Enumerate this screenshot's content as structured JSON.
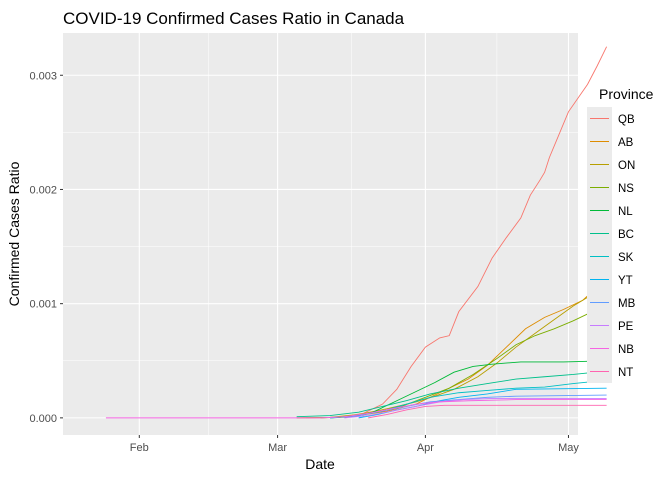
{
  "chart_data": {
    "type": "line",
    "title": "COVID-19 Confirmed Cases Ratio in Canada",
    "xlabel": "Date",
    "ylabel": "Confirmed Cases Ratio",
    "x_type": "date",
    "xlim": [
      "2020-01-16",
      "2020-05-03"
    ],
    "ylim": [
      -0.00015,
      0.00337
    ],
    "x_ticks": [
      {
        "date": "2020-02-01",
        "label": "Feb"
      },
      {
        "date": "2020-03-01",
        "label": "Mar"
      },
      {
        "date": "2020-04-01",
        "label": "Apr"
      },
      {
        "date": "2020-05-01",
        "label": "May"
      }
    ],
    "y_ticks": [
      {
        "value": 0,
        "label": "0.000"
      },
      {
        "value": 0.001,
        "label": "0.001"
      },
      {
        "value": 0.002,
        "label": "0.002"
      },
      {
        "value": 0.003,
        "label": "0.003"
      }
    ],
    "grid": true,
    "background": "#ebebeb",
    "legend": {
      "title": "Province",
      "position": "right"
    },
    "series": [
      {
        "name": "QB",
        "color": "#F8766D",
        "points": [
          [
            "2020-03-07",
            0
          ],
          [
            "2020-03-14",
            5e-06
          ],
          [
            "2020-03-19",
            4e-05
          ],
          [
            "2020-03-23",
            0.00012
          ],
          [
            "2020-03-26",
            0.00025
          ],
          [
            "2020-03-29",
            0.00045
          ],
          [
            "2020-04-01",
            0.00062
          ],
          [
            "2020-04-04",
            0.0007
          ],
          [
            "2020-04-06",
            0.00072
          ],
          [
            "2020-04-08",
            0.00093
          ],
          [
            "2020-04-12",
            0.00115
          ],
          [
            "2020-04-15",
            0.0014
          ],
          [
            "2020-04-18",
            0.00158
          ],
          [
            "2020-04-21",
            0.00175
          ],
          [
            "2020-04-23",
            0.00195
          ],
          [
            "2020-04-25",
            0.00208
          ],
          [
            "2020-04-26",
            0.00215
          ],
          [
            "2020-04-27",
            0.00228
          ],
          [
            "2020-04-29",
            0.00248
          ],
          [
            "2020-05-01",
            0.00268
          ],
          [
            "2020-05-05",
            0.00292
          ],
          [
            "2020-05-07",
            0.00308
          ],
          [
            "2020-05-09",
            0.00325
          ]
        ]
      },
      {
        "name": "AB",
        "color": "#DE8C00",
        "points": [
          [
            "2020-03-05",
            0
          ],
          [
            "2020-03-12",
            3e-06
          ],
          [
            "2020-03-18",
            2e-05
          ],
          [
            "2020-03-24",
            6e-05
          ],
          [
            "2020-03-30",
            0.00012
          ],
          [
            "2020-04-04",
            0.00022
          ],
          [
            "2020-04-10",
            0.00034
          ],
          [
            "2020-04-14",
            0.00046
          ],
          [
            "2020-04-18",
            0.00062
          ],
          [
            "2020-04-22",
            0.00078
          ],
          [
            "2020-04-26",
            0.00088
          ],
          [
            "2020-04-30",
            0.00095
          ],
          [
            "2020-05-04",
            0.00103
          ],
          [
            "2020-05-09",
            0.00122
          ]
        ]
      },
      {
        "name": "ON",
        "color": "#B79F00",
        "points": [
          [
            "2020-03-05",
            0
          ],
          [
            "2020-03-12",
            5e-06
          ],
          [
            "2020-03-18",
            3e-05
          ],
          [
            "2020-03-24",
            8e-05
          ],
          [
            "2020-03-30",
            0.00014
          ],
          [
            "2020-04-03",
            0.00019
          ],
          [
            "2020-04-07",
            0.00025
          ],
          [
            "2020-04-12",
            0.00036
          ],
          [
            "2020-04-16",
            0.00048
          ],
          [
            "2020-04-20",
            0.00062
          ],
          [
            "2020-04-24",
            0.00074
          ],
          [
            "2020-04-28",
            0.00086
          ],
          [
            "2020-05-02",
            0.00098
          ],
          [
            "2020-05-06",
            0.00108
          ],
          [
            "2020-05-09",
            0.0012
          ]
        ]
      },
      {
        "name": "NS",
        "color": "#7CAE00",
        "points": [
          [
            "2020-03-10",
            0
          ],
          [
            "2020-03-16",
            1e-05
          ],
          [
            "2020-03-22",
            5e-05
          ],
          [
            "2020-03-27",
            0.0001
          ],
          [
            "2020-04-01",
            0.00018
          ],
          [
            "2020-04-06",
            0.00026
          ],
          [
            "2020-04-11",
            0.00038
          ],
          [
            "2020-04-16",
            0.00052
          ],
          [
            "2020-04-20",
            0.00064
          ],
          [
            "2020-04-24",
            0.00072
          ],
          [
            "2020-04-28",
            0.00078
          ],
          [
            "2020-05-02",
            0.00085
          ],
          [
            "2020-05-06",
            0.00093
          ],
          [
            "2020-05-09",
            0.00097
          ]
        ]
      },
      {
        "name": "NL",
        "color": "#00BA38",
        "points": [
          [
            "2020-03-12",
            0
          ],
          [
            "2020-03-17",
            1e-05
          ],
          [
            "2020-03-21",
            5e-05
          ],
          [
            "2020-03-26",
            0.00015
          ],
          [
            "2020-03-30",
            0.00023
          ],
          [
            "2020-04-03",
            0.00031
          ],
          [
            "2020-04-07",
            0.0004
          ],
          [
            "2020-04-11",
            0.00045
          ],
          [
            "2020-04-15",
            0.00047
          ],
          [
            "2020-04-21",
            0.00049
          ],
          [
            "2020-04-30",
            0.00049
          ],
          [
            "2020-05-09",
            0.0005
          ]
        ]
      },
      {
        "name": "BC",
        "color": "#00C08B",
        "points": [
          [
            "2020-03-05",
            1e-05
          ],
          [
            "2020-03-12",
            2e-05
          ],
          [
            "2020-03-18",
            5e-05
          ],
          [
            "2020-03-23",
            0.0001
          ],
          [
            "2020-03-28",
            0.00015
          ],
          [
            "2020-04-02",
            0.00021
          ],
          [
            "2020-04-08",
            0.00026
          ],
          [
            "2020-04-14",
            0.0003
          ],
          [
            "2020-04-20",
            0.00034
          ],
          [
            "2020-04-26",
            0.00036
          ],
          [
            "2020-05-02",
            0.00038
          ],
          [
            "2020-05-09",
            0.00041
          ]
        ]
      },
      {
        "name": "SK",
        "color": "#00BFC4",
        "points": [
          [
            "2020-03-12",
            0
          ],
          [
            "2020-03-18",
            2e-05
          ],
          [
            "2020-03-23",
            6e-05
          ],
          [
            "2020-03-28",
            0.00012
          ],
          [
            "2020-04-02",
            0.00018
          ],
          [
            "2020-04-08",
            0.00022
          ],
          [
            "2020-04-14",
            0.00024
          ],
          [
            "2020-04-20",
            0.00026
          ],
          [
            "2020-04-26",
            0.00027
          ],
          [
            "2020-05-02",
            0.0003
          ],
          [
            "2020-05-09",
            0.00033
          ]
        ]
      },
      {
        "name": "YT",
        "color": "#00B4F0",
        "points": [
          [
            "2020-03-18",
            0
          ],
          [
            "2020-03-22",
            3e-05
          ],
          [
            "2020-03-26",
            7e-05
          ],
          [
            "2020-03-30",
            0.0001
          ],
          [
            "2020-04-04",
            0.00015
          ],
          [
            "2020-04-08",
            0.00018
          ],
          [
            "2020-04-14",
            0.00021
          ],
          [
            "2020-04-20",
            0.00025
          ],
          [
            "2020-05-09",
            0.00026
          ]
        ]
      },
      {
        "name": "MB",
        "color": "#619CFF",
        "points": [
          [
            "2020-03-12",
            0
          ],
          [
            "2020-03-18",
            2e-05
          ],
          [
            "2020-03-23",
            6e-05
          ],
          [
            "2020-03-28",
            0.0001
          ],
          [
            "2020-04-02",
            0.00014
          ],
          [
            "2020-04-08",
            0.00016
          ],
          [
            "2020-04-14",
            0.00018
          ],
          [
            "2020-04-20",
            0.00019
          ],
          [
            "2020-05-09",
            0.0002
          ]
        ]
      },
      {
        "name": "PE",
        "color": "#C77CFF",
        "points": [
          [
            "2020-03-15",
            0
          ],
          [
            "2020-03-20",
            2e-05
          ],
          [
            "2020-03-25",
            6e-05
          ],
          [
            "2020-03-30",
            0.0001
          ],
          [
            "2020-04-04",
            0.00014
          ],
          [
            "2020-04-09",
            0.00016
          ],
          [
            "2020-04-15",
            0.00017
          ],
          [
            "2020-05-09",
            0.00017
          ]
        ]
      },
      {
        "name": "NB",
        "color": "#F564E3",
        "points": [
          [
            "2020-01-25",
            0
          ],
          [
            "2020-03-10",
            0
          ],
          [
            "2020-03-15",
            1e-05
          ],
          [
            "2020-03-20",
            4e-05
          ],
          [
            "2020-03-25",
            8e-05
          ],
          [
            "2020-03-30",
            0.00012
          ],
          [
            "2020-04-04",
            0.00014
          ],
          [
            "2020-04-10",
            0.00015
          ],
          [
            "2020-04-20",
            0.00016
          ],
          [
            "2020-05-09",
            0.00016
          ]
        ]
      },
      {
        "name": "NT",
        "color": "#FF64B0",
        "points": [
          [
            "2020-03-20",
            0
          ],
          [
            "2020-03-24",
            3e-05
          ],
          [
            "2020-03-28",
            7e-05
          ],
          [
            "2020-04-01",
            0.0001
          ],
          [
            "2020-04-05",
            0.00011
          ],
          [
            "2020-05-09",
            0.00011
          ]
        ]
      }
    ]
  }
}
